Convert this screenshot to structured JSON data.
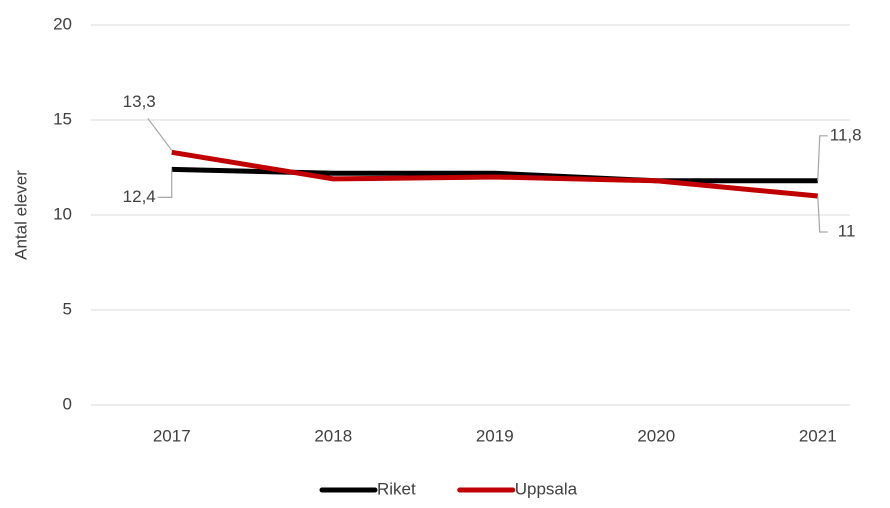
{
  "chart_data": {
    "type": "line",
    "y_axis_label": "Antal elever",
    "categories": [
      "2017",
      "2018",
      "2019",
      "2020",
      "2021"
    ],
    "series": [
      {
        "name": "Riket",
        "color": "#000000",
        "values": [
          12.4,
          12.2,
          12.2,
          11.8,
          11.8
        ],
        "value_labels": [
          "12,4",
          null,
          null,
          null,
          "11,8"
        ]
      },
      {
        "name": "Uppsala",
        "color": "#c00000",
        "values": [
          13.3,
          11.9,
          12.0,
          11.8,
          11
        ],
        "value_labels": [
          "13,3",
          null,
          null,
          null,
          "11"
        ]
      }
    ],
    "ylim": [
      0,
      20
    ],
    "yticks": [
      0,
      5,
      10,
      15,
      20
    ],
    "grid": true,
    "legend": "bottom"
  }
}
